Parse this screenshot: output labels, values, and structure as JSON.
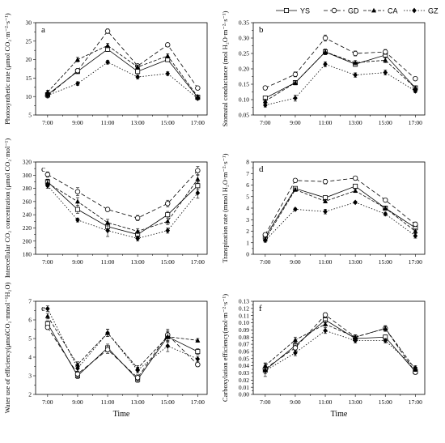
{
  "legend": [
    {
      "name": "YS",
      "dash": "",
      "marker": "square-open"
    },
    {
      "name": "GD",
      "dash": "5,3",
      "marker": "circle-open"
    },
    {
      "name": "CA",
      "dash": "4,2",
      "marker": "triangle-filled"
    },
    {
      "name": "GZ",
      "dash": "1.5,2",
      "marker": "diamond-filled"
    }
  ],
  "x_title": "Time",
  "chart_data": [
    {
      "type": "line",
      "panel_label": "a",
      "ylabel": "Photosynthetic rate (μmol CO₂·m⁻²·s⁻¹)",
      "ylim": [
        5,
        30
      ],
      "yticks": [
        "5",
        "10",
        "15",
        "20",
        "25",
        "30"
      ],
      "categories": [
        "7:00",
        "9:00",
        "11:00",
        "13:00",
        "15:00",
        "17:00"
      ],
      "series": [
        {
          "name": "YS",
          "values": [
            10.5,
            16.8,
            22.8,
            16.8,
            20.0,
            9.8
          ],
          "errors": [
            0.5,
            0.6,
            0.6,
            0.6,
            0.5,
            0.4
          ]
        },
        {
          "name": "GD",
          "values": [
            10.2,
            17.0,
            27.7,
            18.3,
            24.0,
            12.3
          ],
          "errors": [
            0.5,
            0.6,
            0.6,
            0.5,
            0.5,
            0.4
          ]
        },
        {
          "name": "CA",
          "values": [
            11.2,
            20.0,
            23.8,
            18.0,
            21.0,
            10.0
          ],
          "errors": [
            0.5,
            0.6,
            0.6,
            0.5,
            0.6,
            0.4
          ]
        },
        {
          "name": "GZ",
          "values": [
            10.3,
            13.5,
            19.3,
            15.3,
            16.2,
            9.5
          ],
          "errors": [
            0.4,
            0.5,
            0.5,
            0.5,
            0.5,
            0.4
          ]
        }
      ]
    },
    {
      "type": "line",
      "panel_label": "b",
      "ylabel": "Stomatal conductance (mol H₂O·m⁻²·s⁻¹)",
      "ylim": [
        0.05,
        0.35
      ],
      "yticks": [
        "0.05",
        "0.10",
        "0.15",
        "0.20",
        "0.25",
        "0.30",
        "0.35"
      ],
      "categories": [
        "7:00",
        "9:00",
        "11:00",
        "13:00",
        "15:00",
        "17:00"
      ],
      "series": [
        {
          "name": "YS",
          "values": [
            0.105,
            0.155,
            0.255,
            0.215,
            0.245,
            0.138
          ],
          "errors": [
            0.006,
            0.007,
            0.009,
            0.007,
            0.008,
            0.006
          ]
        },
        {
          "name": "GD",
          "values": [
            0.138,
            0.182,
            0.3,
            0.25,
            0.255,
            0.168
          ],
          "errors": [
            0.005,
            0.008,
            0.01,
            0.008,
            0.008,
            0.006
          ]
        },
        {
          "name": "CA",
          "values": [
            0.095,
            0.155,
            0.255,
            0.22,
            0.228,
            0.138
          ],
          "errors": [
            0.006,
            0.007,
            0.009,
            0.007,
            0.008,
            0.006
          ]
        },
        {
          "name": "GZ",
          "values": [
            0.082,
            0.105,
            0.215,
            0.18,
            0.188,
            0.128
          ],
          "errors": [
            0.006,
            0.01,
            0.008,
            0.007,
            0.008,
            0.006
          ]
        }
      ]
    },
    {
      "type": "line",
      "panel_label": "c",
      "ylabel": "Intercellular CO₂ concentration (μmol CO₂·mol⁻¹)",
      "ylim": [
        180,
        320
      ],
      "yticks": [
        "180",
        "200",
        "220",
        "240",
        "260",
        "280",
        "300",
        "320"
      ],
      "categories": [
        "7:00",
        "9:00",
        "11:00",
        "13:00",
        "15:00",
        "17:00"
      ],
      "series": [
        {
          "name": "YS",
          "values": [
            290,
            248,
            222,
            210,
            240,
            284
          ],
          "errors": [
            4,
            6,
            5,
            4,
            5,
            6
          ]
        },
        {
          "name": "GD",
          "values": [
            301,
            275,
            248,
            235,
            257,
            307
          ],
          "errors": [
            4,
            6,
            3,
            4,
            5,
            6
          ]
        },
        {
          "name": "CA",
          "values": [
            288,
            260,
            228,
            215,
            230,
            294
          ],
          "errors": [
            4,
            6,
            5,
            4,
            5,
            6
          ]
        },
        {
          "name": "GZ",
          "values": [
            284,
            232,
            216,
            204,
            216,
            273
          ],
          "errors": [
            4,
            3,
            9,
            4,
            4,
            8
          ]
        }
      ]
    },
    {
      "type": "line",
      "panel_label": "d",
      "ylabel": "Transpiration rate (mmol H₂O·m⁻²·s⁻¹)",
      "ylim": [
        0,
        8
      ],
      "yticks": [
        "0",
        "1",
        "2",
        "3",
        "4",
        "5",
        "6",
        "7",
        "8"
      ],
      "categories": [
        "7:00",
        "9:00",
        "11:00",
        "13:00",
        "15:00",
        "17:00"
      ],
      "series": [
        {
          "name": "YS",
          "values": [
            1.5,
            5.7,
            4.9,
            5.9,
            4.0,
            2.3
          ],
          "errors": [
            0.15,
            0.15,
            0.15,
            0.15,
            0.15,
            0.2
          ]
        },
        {
          "name": "GD",
          "values": [
            1.7,
            6.4,
            6.3,
            6.6,
            4.7,
            2.6
          ],
          "errors": [
            0.15,
            0.15,
            0.2,
            0.1,
            0.15,
            0.2
          ]
        },
        {
          "name": "CA",
          "values": [
            1.3,
            5.6,
            4.6,
            5.5,
            4.0,
            2.0
          ],
          "errors": [
            0.15,
            0.15,
            0.15,
            0.15,
            0.15,
            0.2
          ]
        },
        {
          "name": "GZ",
          "values": [
            1.2,
            3.9,
            3.7,
            4.5,
            3.5,
            1.6
          ],
          "errors": [
            0.15,
            0.1,
            0.2,
            0.1,
            0.15,
            0.2
          ]
        }
      ]
    },
    {
      "type": "line",
      "panel_label": "e",
      "ylabel": "Water use of efficiency(μmolCO₂·mmol⁻¹H₂O)",
      "ylim": [
        2,
        7
      ],
      "yticks": [
        "2",
        "3",
        "4",
        "5",
        "6",
        "7"
      ],
      "categories": [
        "7:00",
        "9:00",
        "11:00",
        "13:00",
        "15:00",
        "17:00"
      ],
      "series": [
        {
          "name": "YS",
          "values": [
            5.8,
            3.0,
            4.5,
            2.8,
            5.1,
            4.3
          ],
          "errors": [
            0.15,
            0.15,
            0.2,
            0.15,
            0.3,
            0.15
          ]
        },
        {
          "name": "GD",
          "values": [
            5.6,
            3.1,
            4.4,
            2.9,
            5.2,
            3.6
          ],
          "errors": [
            0.1,
            0.15,
            0.2,
            0.15,
            0.3,
            0.1
          ]
        },
        {
          "name": "CA",
          "values": [
            6.2,
            3.6,
            5.3,
            3.4,
            5.1,
            4.9
          ],
          "errors": [
            0.15,
            0.15,
            0.2,
            0.15,
            0.25,
            0.1
          ]
        },
        {
          "name": "GZ",
          "values": [
            6.6,
            3.4,
            5.3,
            3.3,
            4.6,
            3.9
          ],
          "errors": [
            0.15,
            0.2,
            0.2,
            0.15,
            0.3,
            0.15
          ]
        }
      ]
    },
    {
      "type": "line",
      "panel_label": "f",
      "ylabel": "Carboxylation efficiency(mol·m⁻²·s⁻¹)",
      "ylim": [
        0,
        0.13
      ],
      "yticks": [
        "0.00",
        "0.01",
        "0.02",
        "0.03",
        "0.04",
        "0.05",
        "0.06",
        "0.07",
        "0.08",
        "0.09",
        "0.10",
        "0.11",
        "0.12",
        "0.13"
      ],
      "categories": [
        "7:00",
        "9:00",
        "11:00",
        "13:00",
        "15:00",
        "17:00"
      ],
      "series": [
        {
          "name": "YS",
          "values": [
            0.034,
            0.068,
            0.104,
            0.078,
            0.08,
            0.032
          ],
          "errors": [
            0.009,
            0.005,
            0.004,
            0.003,
            0.003,
            0.003
          ]
        },
        {
          "name": "GD",
          "values": [
            0.036,
            0.065,
            0.111,
            0.08,
            0.092,
            0.031
          ],
          "errors": [
            0.004,
            0.004,
            0.003,
            0.003,
            0.003,
            0.003
          ]
        },
        {
          "name": "CA",
          "values": [
            0.04,
            0.076,
            0.098,
            0.08,
            0.092,
            0.035
          ],
          "errors": [
            0.004,
            0.004,
            0.005,
            0.003,
            0.004,
            0.003
          ]
        },
        {
          "name": "GZ",
          "values": [
            0.033,
            0.058,
            0.089,
            0.075,
            0.075,
            0.037
          ],
          "errors": [
            0.004,
            0.004,
            0.004,
            0.003,
            0.003,
            0.003
          ]
        }
      ]
    }
  ]
}
